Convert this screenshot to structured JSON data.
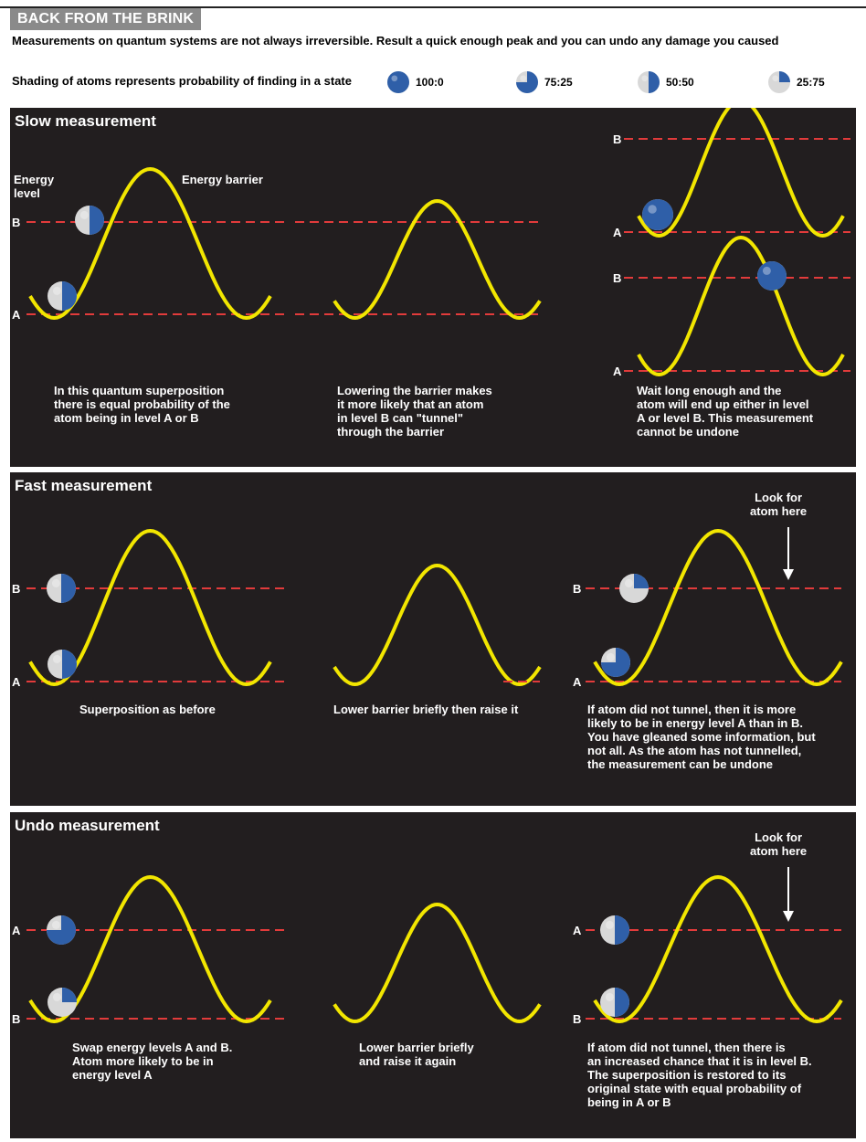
{
  "header": {
    "title": "BACK FROM THE BRINK",
    "subtitle": "Measurements on quantum systems are not always irreversible. Result a quick enough peak and you can undo any damage you caused"
  },
  "legend": {
    "label": "Shading of atoms represents probability of finding in a state",
    "items": [
      {
        "label": "100:0",
        "fraction": 1.0
      },
      {
        "label": "75:25",
        "fraction": 0.75
      },
      {
        "label": "50:50",
        "fraction": 0.5
      },
      {
        "label": "25:75",
        "fraction": 0.25
      }
    ]
  },
  "level_labels": {
    "a": "A",
    "b": "B"
  },
  "panels": [
    {
      "title": "Slow measurement",
      "labels": {
        "energy_level": "Energy\nlevel",
        "energy_barrier": "Energy barrier"
      },
      "captions": [
        "In this quantum superposition\nthere is equal probability of the\natom being in level A or B",
        "Lowering the barrier makes\nit more likely that an atom\nin level B can \"tunnel\"\nthrough the barrier",
        "Wait long enough and the\natom will end up either in level\nA or level B. This measurement\ncannot be undone"
      ]
    },
    {
      "title": "Fast measurement",
      "look_label": "Look for\natom here",
      "captions": [
        "Superposition as before",
        "Lower barrier briefly then raise it",
        "If atom did not tunnel, then it is more\nlikely to be in energy level A than in B.\nYou have gleaned some information, but\nnot all. As the atom has not tunnelled,\nthe measurement can be undone"
      ]
    },
    {
      "title": "Undo measurement",
      "look_label": "Look for\natom here",
      "captions": [
        "Swap energy levels A and B.\nAtom more likely to be in\nenergy level A",
        "Lower barrier briefly\nand raise it again",
        "If atom did not tunnel, then there is\nan increased chance that it is in level B.\nThe superposition is restored to its\noriginal state with equal probability of\nbeing in A or B"
      ]
    }
  ],
  "colors": {
    "panel_bg": "#221e1f",
    "curve": "#f2e600",
    "dashed_line": "#e23b3b",
    "atom_blue": "#2f5fa8",
    "atom_grey": "#d8d8d8",
    "title_box": "#8a8a8a"
  }
}
